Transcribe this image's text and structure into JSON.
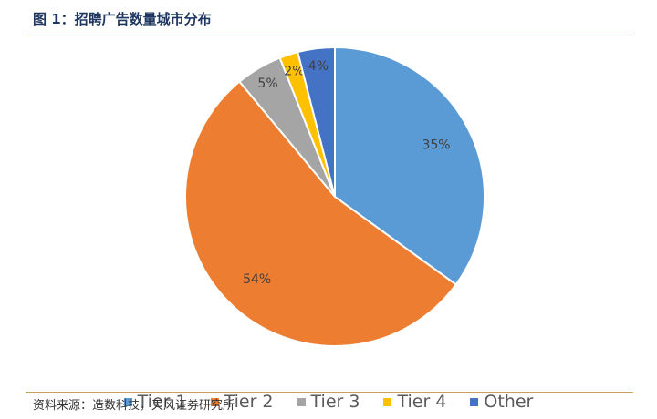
{
  "figure": {
    "title": "图 1：招聘广告数量城市分布",
    "source": "资料来源：造数科技，天风证券研究所"
  },
  "colors": {
    "title_color": "#1f3760",
    "rule_color": "#c9a15d"
  },
  "chart_data": {
    "type": "pie",
    "title": "",
    "categories": [
      "Tier 1",
      "Tier 2",
      "Tier 3",
      "Tier 4",
      "Other"
    ],
    "values": [
      35,
      54,
      5,
      2,
      4
    ],
    "labels": [
      "35%",
      "54%",
      "5%",
      "2%",
      "4%"
    ],
    "colors": [
      "#5b9bd5",
      "#ed7d31",
      "#a5a5a5",
      "#ffc000",
      "#4472c4"
    ],
    "start_angle_deg": 0,
    "direction": "clockwise",
    "legend": "bottom",
    "data_labels": "inside"
  }
}
